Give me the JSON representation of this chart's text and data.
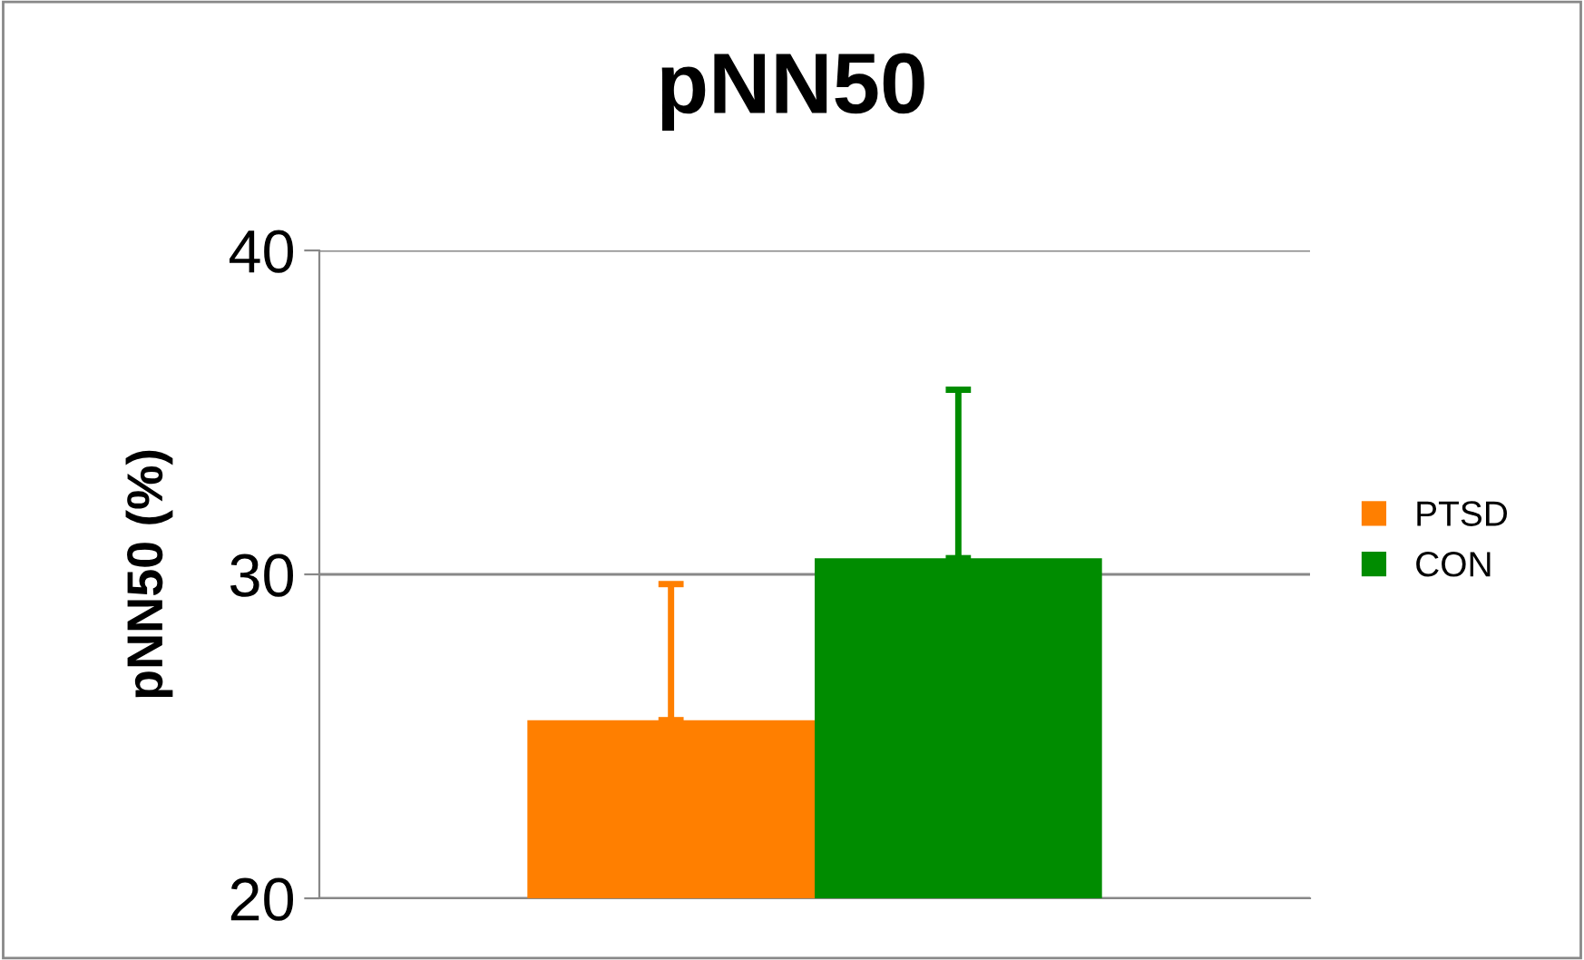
{
  "chart_data": {
    "type": "bar",
    "title": "pNN50",
    "ylabel": "pNN50 (%)",
    "categories": [
      null
    ],
    "series": [
      {
        "name": "PTSD",
        "color": "#ff7f00",
        "values": [
          25.5
        ],
        "errors": [
          [
            25.5,
            29.7
          ]
        ]
      },
      {
        "name": "CON",
        "color": "#008c00",
        "values": [
          30.5
        ],
        "errors": [
          [
            30.5,
            35.7
          ]
        ]
      }
    ],
    "ylim": [
      20,
      40
    ],
    "yticks": [
      20,
      30,
      40
    ],
    "grid": "y",
    "legend": "right"
  }
}
